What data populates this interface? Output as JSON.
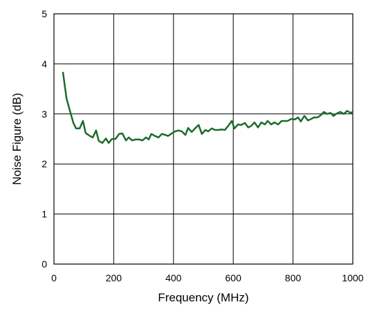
{
  "chart_data": {
    "type": "line",
    "xlabel": "Frequency (MHz)",
    "ylabel": "Noise Figure (dB)",
    "xlim": [
      0,
      1000
    ],
    "ylim": [
      0,
      5
    ],
    "xticks": [
      0,
      200,
      400,
      600,
      800,
      1000
    ],
    "yticks": [
      0,
      1,
      2,
      3,
      4,
      5
    ],
    "grid": true,
    "series": [
      {
        "color": "#1b6b2c",
        "x": [
          30,
          42,
          53,
          65,
          74,
          86,
          97,
          106,
          120,
          130,
          141,
          150,
          162,
          174,
          183,
          194,
          206,
          218,
          229,
          241,
          250,
          262,
          273,
          285,
          296,
          308,
          317,
          326,
          338,
          350,
          361,
          373,
          382,
          394,
          405,
          417,
          428,
          440,
          449,
          461,
          472,
          484,
          495,
          507,
          516,
          528,
          539,
          551,
          560,
          572,
          583,
          595,
          604,
          616,
          627,
          639,
          650,
          660,
          671,
          683,
          694,
          706,
          715,
          727,
          738,
          750,
          762,
          771,
          782,
          794,
          806,
          817,
          826,
          838,
          850,
          861,
          870,
          882,
          894,
          903,
          914,
          926,
          935,
          947,
          958,
          970,
          981,
          993,
          1000
        ],
        "values": [
          3.84,
          3.31,
          3.07,
          2.82,
          2.71,
          2.71,
          2.86,
          2.62,
          2.56,
          2.53,
          2.67,
          2.46,
          2.42,
          2.51,
          2.42,
          2.5,
          2.5,
          2.6,
          2.61,
          2.47,
          2.53,
          2.47,
          2.49,
          2.49,
          2.47,
          2.53,
          2.49,
          2.6,
          2.56,
          2.53,
          2.6,
          2.58,
          2.56,
          2.61,
          2.65,
          2.67,
          2.65,
          2.58,
          2.72,
          2.64,
          2.71,
          2.78,
          2.6,
          2.68,
          2.65,
          2.71,
          2.68,
          2.68,
          2.69,
          2.68,
          2.76,
          2.86,
          2.71,
          2.79,
          2.78,
          2.82,
          2.73,
          2.76,
          2.83,
          2.73,
          2.83,
          2.79,
          2.86,
          2.79,
          2.83,
          2.79,
          2.86,
          2.86,
          2.86,
          2.9,
          2.89,
          2.93,
          2.85,
          2.96,
          2.87,
          2.9,
          2.93,
          2.93,
          2.98,
          3.04,
          3.0,
          3.02,
          2.96,
          3.01,
          3.04,
          3.0,
          3.06,
          3.02,
          3.04
        ]
      }
    ]
  }
}
